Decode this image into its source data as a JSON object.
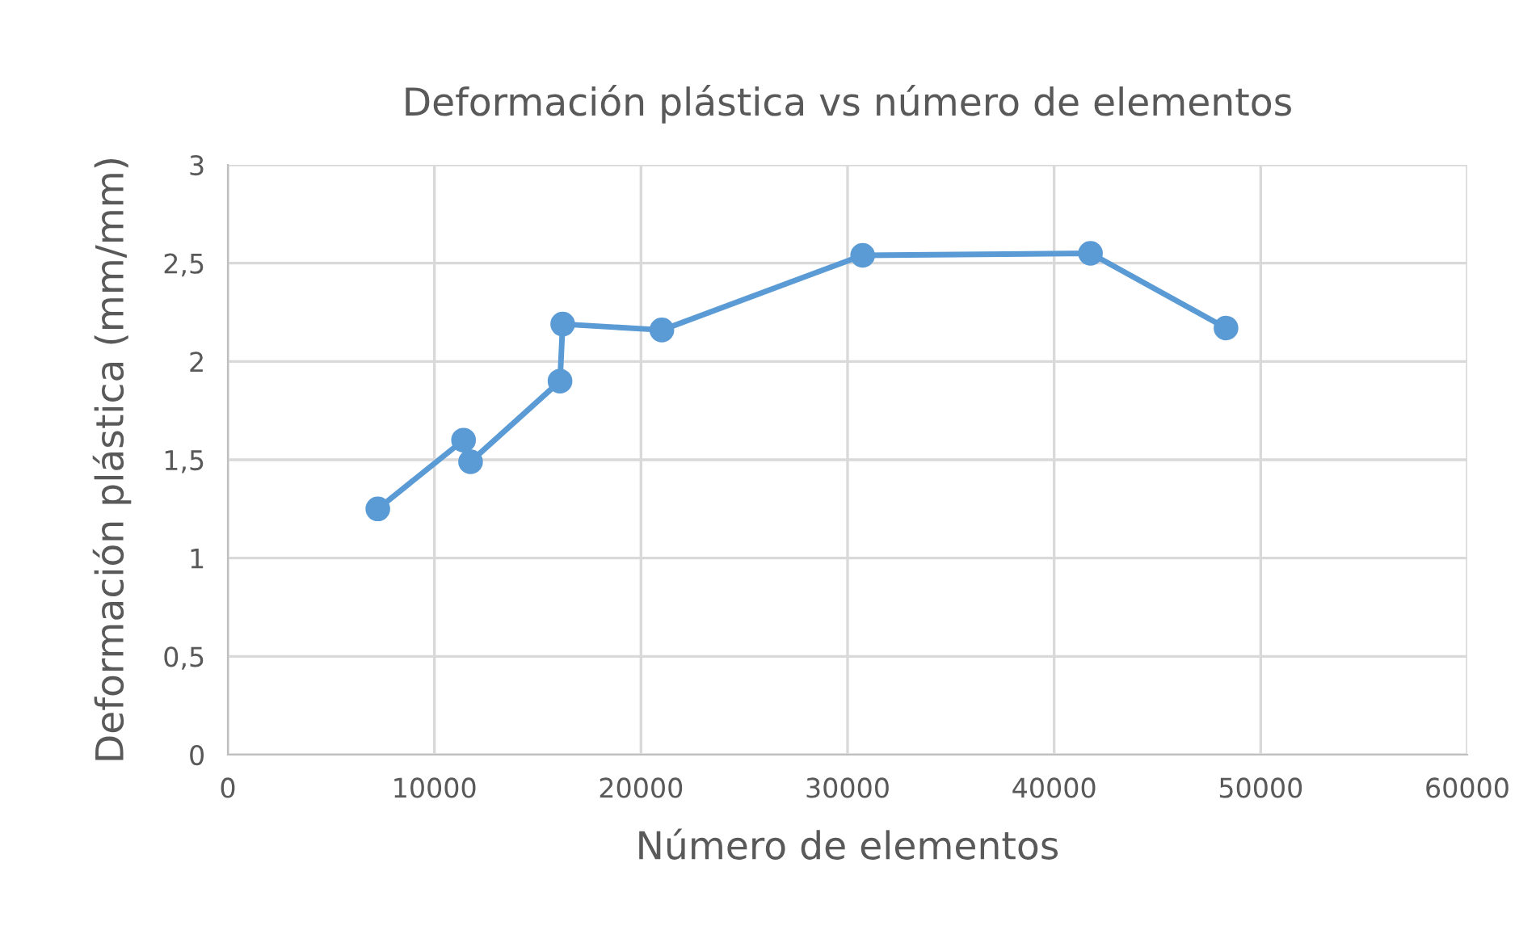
{
  "chart_data": {
    "type": "line",
    "title": "Deformación plástica vs número de elementos",
    "xlabel": "Número de elementos",
    "ylabel": "Deformación plástica (mm/mm)",
    "x": [
      7260,
      11410,
      11750,
      16080,
      16210,
      21010,
      30730,
      41760,
      48320
    ],
    "series": [
      {
        "color": "#5b9bd5",
        "values": [
          1.25,
          1.6,
          1.49,
          1.9,
          2.19,
          2.16,
          2.54,
          2.55,
          2.17
        ]
      }
    ],
    "xlim": [
      0,
      60000
    ],
    "xticks": [
      0,
      10000,
      20000,
      30000,
      40000,
      50000,
      60000
    ],
    "ylim": [
      0,
      3
    ],
    "yticks": [
      0,
      {
        "value": 0.5,
        "label": "0,5"
      },
      1,
      {
        "value": 1.5,
        "label": "1,5"
      },
      2,
      {
        "value": 2.5,
        "label": "2,5"
      },
      3
    ],
    "grid": true,
    "marker": "circle",
    "line_style": "solid",
    "legend": false
  }
}
